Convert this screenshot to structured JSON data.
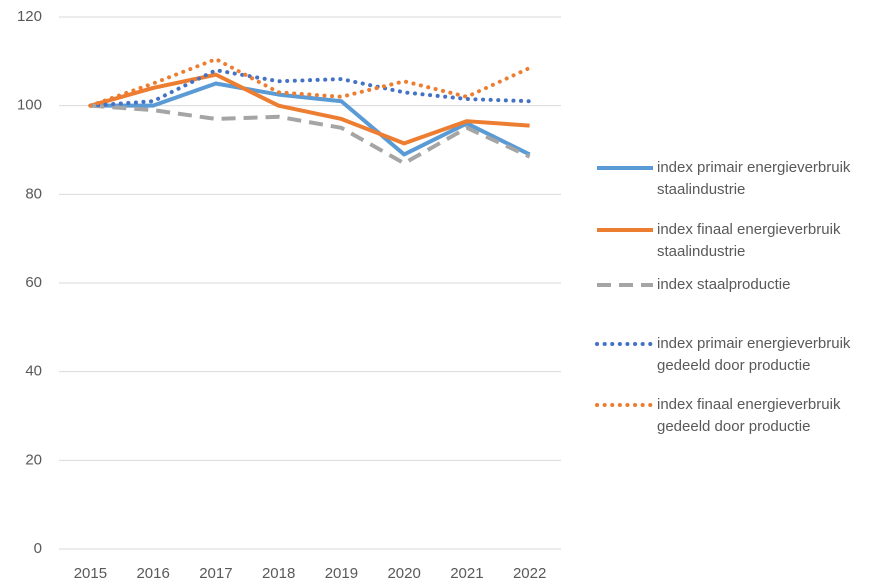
{
  "chart_data": {
    "type": "line",
    "categories": [
      "2015",
      "2016",
      "2017",
      "2018",
      "2019",
      "2020",
      "2021",
      "2022"
    ],
    "series": [
      {
        "name": "index primair energieverbruik staalindustrie",
        "color": "#5b9bd5",
        "style": "solid",
        "values": [
          100,
          100,
          105,
          102.5,
          101,
          89,
          96,
          89
        ]
      },
      {
        "name": "index finaal energieverbruik staalindustrie",
        "color": "#ed7d31",
        "style": "solid",
        "values": [
          100,
          104,
          107,
          100,
          97,
          91.5,
          96.5,
          95.5
        ]
      },
      {
        "name": "index staalproductie",
        "color": "#a5a5a5",
        "style": "dash",
        "values": [
          100,
          99,
          97,
          97.5,
          95,
          87,
          95,
          88.5
        ]
      },
      {
        "name": "index primair energieverbruik gedeeld door productie",
        "color": "#4472c4",
        "style": "dot",
        "values": [
          100,
          101,
          108,
          105.5,
          106,
          103,
          101.5,
          101
        ]
      },
      {
        "name": "index finaal energieverbruik gedeeld door productie",
        "color": "#ed7d31",
        "style": "dot",
        "values": [
          100,
          105,
          110.5,
          103,
          102,
          105.5,
          102,
          108.5
        ]
      }
    ],
    "ylim": [
      0,
      120
    ],
    "yticks": [
      0,
      20,
      40,
      60,
      80,
      100,
      120
    ],
    "grid": true,
    "legend": "right"
  }
}
